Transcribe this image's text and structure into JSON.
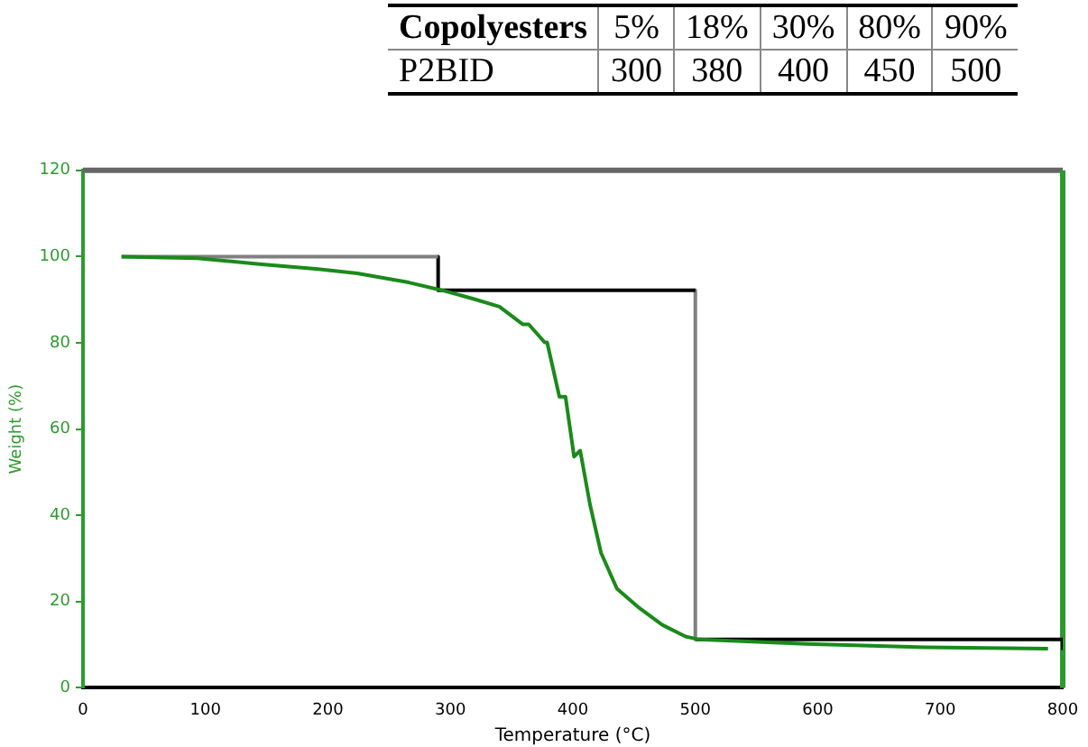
{
  "chart_data": [
    {
      "type": "other",
      "title": "Copolyesters",
      "ylabel": "P2BID",
      "categories": [
        "5%",
        "18%",
        "30%",
        "80%",
        "90%"
      ],
      "values": [
        300,
        380,
        400,
        450,
        500
      ],
      "data_labels": true
    },
    {
      "type": "line",
      "xlabel": "Temperature (°C)",
      "ylabel": "Weight (%)",
      "xlim": [
        0,
        800
      ],
      "xticks": [
        0,
        100,
        200,
        300,
        400,
        500,
        600,
        700,
        800
      ],
      "ylim": [
        0,
        120
      ],
      "yticks": [
        0,
        20,
        40,
        60,
        80,
        100,
        120
      ],
      "grid": false,
      "legend": false,
      "marker": "none",
      "line_style": "solid",
      "series": [
        {
          "color": "#1a8a1a",
          "x": [
            31.5,
            93.5,
            146,
            192,
            224,
            266,
            293,
            320,
            340,
            359,
            364,
            377,
            379,
            389,
            394,
            401,
            406,
            414,
            423,
            436,
            453,
            473,
            492,
            503,
            591,
            689,
            788
          ],
          "values": [
            100,
            99.6,
            98.2,
            97.1,
            96.1,
            94,
            92.2,
            90.1,
            88.4,
            84.3,
            84.3,
            80.1,
            80.1,
            67.5,
            67.5,
            53.6,
            55,
            42.5,
            31.3,
            23,
            18.8,
            14.6,
            11.9,
            11.2,
            10.2,
            9.4,
            9.1
          ]
        },
        {
          "color": "#808080",
          "x": [
            31.5,
            290
          ],
          "values": [
            100,
            100
          ]
        },
        {
          "color": "#000000",
          "x": [
            290,
            290
          ],
          "values": [
            100,
            92.2
          ]
        },
        {
          "color": "#000000",
          "x": [
            290,
            500
          ],
          "values": [
            92.2,
            92.2
          ]
        },
        {
          "color": "#808080",
          "x": [
            500,
            500
          ],
          "values": [
            92.2,
            11.2
          ]
        },
        {
          "color": "#000000",
          "x": [
            500,
            800
          ],
          "values": [
            11.2,
            11.2
          ]
        },
        {
          "color": "#000000",
          "x": [
            800,
            800
          ],
          "values": [
            11.2,
            9.1
          ]
        }
      ]
    }
  ]
}
